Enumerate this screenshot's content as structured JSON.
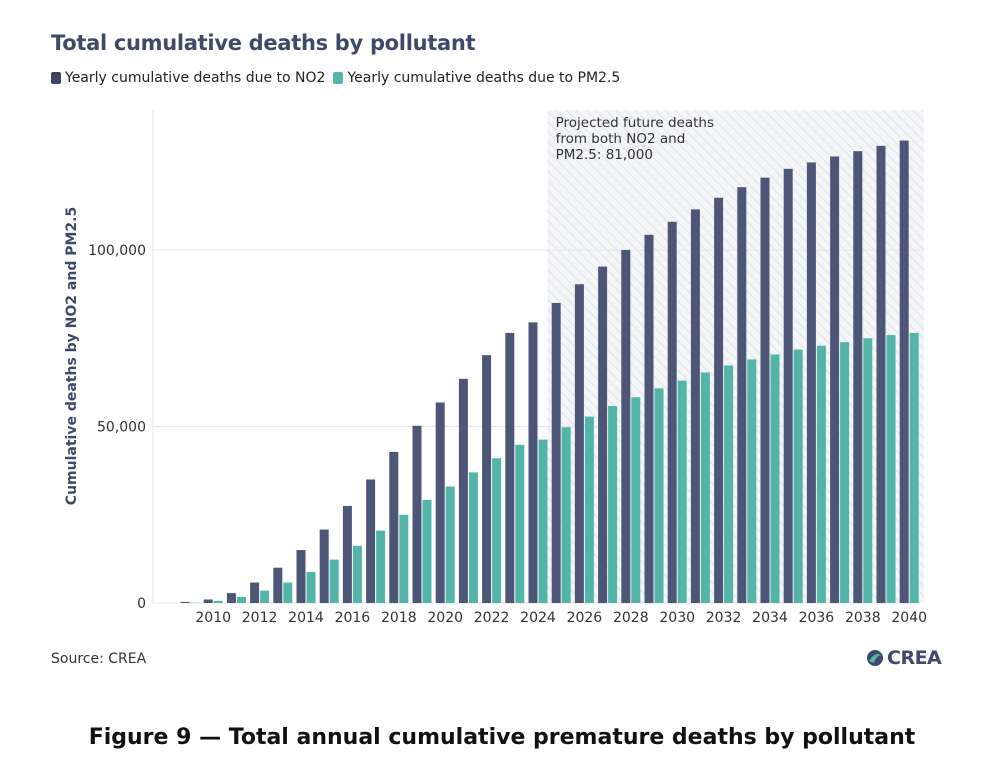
{
  "chart_data": {
    "type": "bar",
    "title": "Total cumulative deaths by pollutant",
    "xlabel": "",
    "ylabel": "Cumulative deaths by NO2 and PM2.5",
    "ylim": [
      0,
      140000
    ],
    "yticks": [
      0,
      50000,
      100000
    ],
    "ytick_labels": [
      "0",
      "50,000",
      "100,000"
    ],
    "xtick_labels": [
      "2010",
      "2012",
      "2014",
      "2016",
      "2018",
      "2020",
      "2022",
      "2024",
      "2026",
      "2028",
      "2030",
      "2032",
      "2034",
      "2036",
      "2038",
      "2040"
    ],
    "categories": [
      2009,
      2010,
      2011,
      2012,
      2013,
      2014,
      2015,
      2016,
      2017,
      2018,
      2019,
      2020,
      2021,
      2022,
      2023,
      2024,
      2025,
      2026,
      2027,
      2028,
      2029,
      2030,
      2031,
      2032,
      2033,
      2034,
      2035,
      2036,
      2037,
      2038,
      2039,
      2040
    ],
    "series": [
      {
        "name": "Yearly cumulative deaths due to NO2",
        "color": "#4d5677",
        "values": [
          300,
          1000,
          2800,
          5800,
          10000,
          15000,
          20800,
          27500,
          35000,
          42800,
          50200,
          56800,
          63500,
          70200,
          76500,
          79500,
          85000,
          90300,
          95300,
          100000,
          104300,
          108000,
          111500,
          114800,
          117800,
          120500,
          123000,
          124800,
          126500,
          128000,
          129500,
          131000
        ]
      },
      {
        "name": "Yearly cumulative deaths due to PM2.5",
        "color": "#52b5a7",
        "values": [
          100,
          600,
          1700,
          3500,
          5800,
          8800,
          12300,
          16200,
          20500,
          25000,
          29200,
          33000,
          37000,
          41000,
          44800,
          46300,
          49800,
          52800,
          55800,
          58300,
          60800,
          63000,
          65300,
          67300,
          69000,
          70400,
          71800,
          72900,
          73900,
          75000,
          75900,
          76500
        ]
      }
    ],
    "annotation": {
      "lines": [
        "Projected future deaths",
        "from both NO2 and",
        "PM2.5: 81,000"
      ],
      "shaded_from": 2025,
      "shaded_to": 2040
    },
    "legend_position": "top-left",
    "grid": "horizontal"
  },
  "source": "Source: CREA",
  "logo_text": "CREA",
  "caption": "Figure 9 — Total annual cumulative premature deaths by pollutant",
  "colors": {
    "title": "#3f4a6a",
    "grid": "#e4e6ea",
    "hatch": "#dde0e5",
    "shade_bg": "#f3f4f6"
  }
}
